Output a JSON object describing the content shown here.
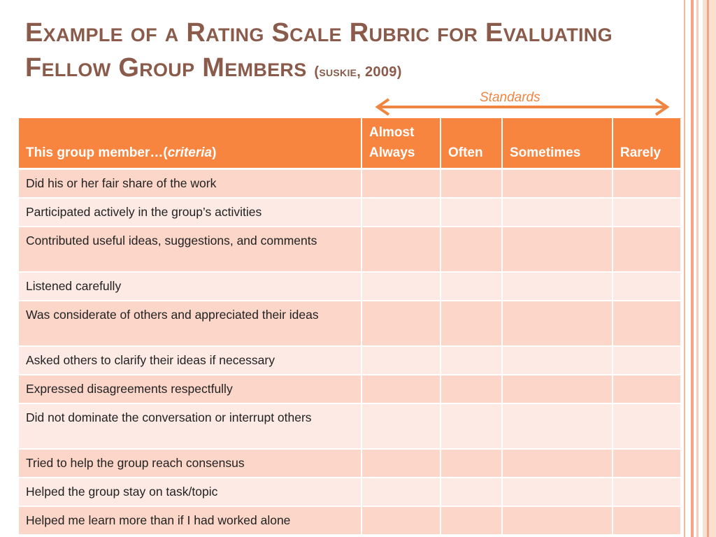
{
  "slide": {
    "title_main": "Example of a Rating Scale Rubric for Evaluating Fellow Group Members",
    "title_cite": "(suskie, 2009)"
  },
  "standards": {
    "label": "Standards"
  },
  "table": {
    "header": {
      "criteria_prefix": "This group member…(",
      "criteria_italic": "criteria",
      "criteria_suffix": ")",
      "scale": [
        "Almost Always",
        "Often",
        "Sometimes",
        "Rarely"
      ]
    },
    "rows": [
      "Did his or her fair share of the work",
      "Participated actively in the group’s activities",
      "Contributed useful ideas, suggestions, and comments",
      "Listened carefully",
      "Was considerate of others and appreciated their ideas",
      "Asked others to clarify their ideas if necessary",
      "Expressed disagreements respectfully",
      "Did not dominate the conversation or interrupt others",
      "Tried to help the group reach consensus",
      "Helped the group stay on task/topic",
      "Helped me learn more than if I had worked alone"
    ]
  },
  "colors": {
    "title": "#8a5a4a",
    "accent": "#f8853f",
    "row_odd": "#fcd6c9",
    "row_even": "#fdeae4"
  }
}
